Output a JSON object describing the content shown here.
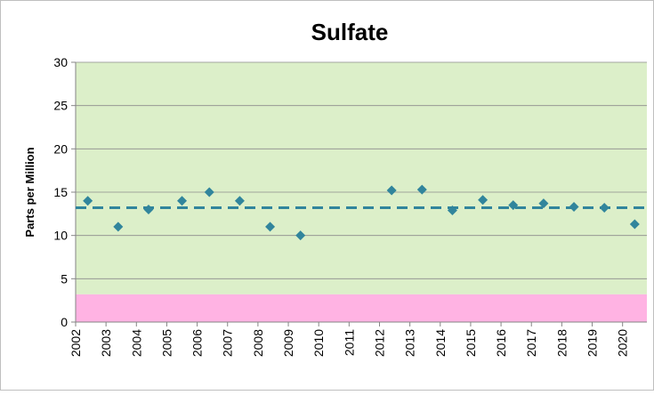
{
  "chart_data": {
    "type": "scatter",
    "title": "Sulfate",
    "y_label": "Parts per Million",
    "x": [
      2002.4,
      2003.4,
      2004.4,
      2005.5,
      2006.4,
      2007.4,
      2008.4,
      2009.4,
      2012.4,
      2013.4,
      2014.4,
      2015.4,
      2016.4,
      2017.4,
      2018.4,
      2019.4,
      2020.4
    ],
    "series": [
      {
        "name": "Sulfate",
        "color": "#31859c",
        "values": [
          14,
          11,
          13,
          14,
          15,
          14,
          11,
          10,
          15.2,
          15.3,
          12.9,
          14.1,
          13.5,
          13.7,
          13.3,
          13.2,
          11.3
        ]
      }
    ],
    "reference_line": {
      "value": 13.2,
      "color": "#31859c"
    },
    "bands": [
      {
        "from": 3.2,
        "to": 30,
        "color": "#dcefc9"
      },
      {
        "from": 0,
        "to": 3.2,
        "color": "#ffb3e3"
      }
    ],
    "xlim": [
      2002,
      2020.8
    ],
    "xticks": [
      2002,
      2003,
      2004,
      2005,
      2006,
      2007,
      2008,
      2009,
      2010,
      2011,
      2012,
      2013,
      2014,
      2015,
      2016,
      2017,
      2018,
      2019,
      2020
    ],
    "ylim": [
      0,
      30
    ],
    "yticks": [
      0,
      5,
      10,
      15,
      20,
      25,
      30
    ],
    "grid": true
  }
}
